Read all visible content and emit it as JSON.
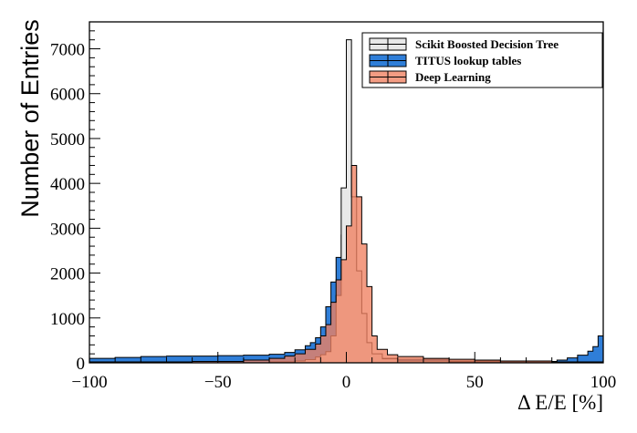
{
  "chart_data": {
    "type": "histogram",
    "xlabel": "Δ E/E [%]",
    "ylabel": "Number of Entries",
    "xlim": [
      -100,
      100
    ],
    "ylim": [
      0,
      7600
    ],
    "x_ticks": [
      -100,
      -50,
      0,
      50,
      100
    ],
    "x_tick_labels": [
      "−100",
      "−50",
      "0",
      "50",
      "100"
    ],
    "y_ticks": [
      0,
      1000,
      2000,
      3000,
      4000,
      5000,
      6000,
      7000
    ],
    "y_tick_labels": [
      "0",
      "1000",
      "2000",
      "3000",
      "4000",
      "5000",
      "6000",
      "7000"
    ],
    "legend_position": "top-right",
    "bin_width": 2,
    "series": [
      {
        "name": "TITUS lookup tables",
        "fill": "#2f7ed8",
        "stroke": "#000000",
        "opacity": 1.0,
        "bins": [
          [
            -100,
            100
          ],
          [
            -90,
            120
          ],
          [
            -80,
            140
          ],
          [
            -70,
            150
          ],
          [
            -60,
            150
          ],
          [
            -50,
            160
          ],
          [
            -40,
            170
          ],
          [
            -30,
            190
          ],
          [
            -24,
            230
          ],
          [
            -20,
            290
          ],
          [
            -16,
            380
          ],
          [
            -14,
            450
          ],
          [
            -12,
            560
          ],
          [
            -10,
            800
          ],
          [
            -8,
            1250
          ],
          [
            -6,
            1800
          ],
          [
            -4,
            2350
          ],
          [
            -2,
            2850
          ],
          [
            0,
            2500
          ],
          [
            2,
            1500
          ],
          [
            4,
            500
          ],
          [
            6,
            220
          ],
          [
            8,
            150
          ],
          [
            10,
            120
          ],
          [
            14,
            100
          ],
          [
            20,
            80
          ],
          [
            40,
            40
          ],
          [
            70,
            20
          ],
          [
            78,
            30
          ],
          [
            82,
            60
          ],
          [
            86,
            110
          ],
          [
            90,
            170
          ],
          [
            94,
            260
          ],
          [
            96,
            360
          ],
          [
            98,
            600
          ]
        ]
      },
      {
        "name": "Scikit Boosted Decision Tree",
        "fill": "#e8e8e8",
        "stroke": "#000000",
        "opacity": 1.0,
        "bins": [
          [
            -100,
            0
          ],
          [
            -30,
            20
          ],
          [
            -20,
            40
          ],
          [
            -16,
            70
          ],
          [
            -12,
            130
          ],
          [
            -10,
            180
          ],
          [
            -8,
            250
          ],
          [
            -6,
            600
          ],
          [
            -4,
            1500
          ],
          [
            -2,
            3900
          ],
          [
            -1,
            6300
          ],
          [
            0,
            7200
          ],
          [
            1,
            5400
          ],
          [
            2,
            3700
          ],
          [
            4,
            2050
          ],
          [
            6,
            1100
          ],
          [
            8,
            450
          ],
          [
            10,
            200
          ],
          [
            14,
            90
          ],
          [
            20,
            40
          ],
          [
            40,
            20
          ],
          [
            100,
            0
          ]
        ]
      },
      {
        "name": "Deep Learning",
        "fill": "#f08060",
        "stroke": "#000000",
        "opacity": 0.78,
        "bins": [
          [
            -100,
            20
          ],
          [
            -60,
            30
          ],
          [
            -40,
            60
          ],
          [
            -30,
            100
          ],
          [
            -24,
            150
          ],
          [
            -20,
            200
          ],
          [
            -16,
            300
          ],
          [
            -12,
            420
          ],
          [
            -10,
            600
          ],
          [
            -8,
            850
          ],
          [
            -6,
            1350
          ],
          [
            -4,
            1850
          ],
          [
            -2,
            2300
          ],
          [
            0,
            3050
          ],
          [
            2,
            4400
          ],
          [
            4,
            3700
          ],
          [
            6,
            2650
          ],
          [
            8,
            1700
          ],
          [
            10,
            600
          ],
          [
            12,
            300
          ],
          [
            16,
            180
          ],
          [
            20,
            140
          ],
          [
            30,
            100
          ],
          [
            40,
            80
          ],
          [
            50,
            60
          ],
          [
            60,
            40
          ],
          [
            80,
            20
          ],
          [
            100,
            0
          ]
        ]
      }
    ]
  }
}
